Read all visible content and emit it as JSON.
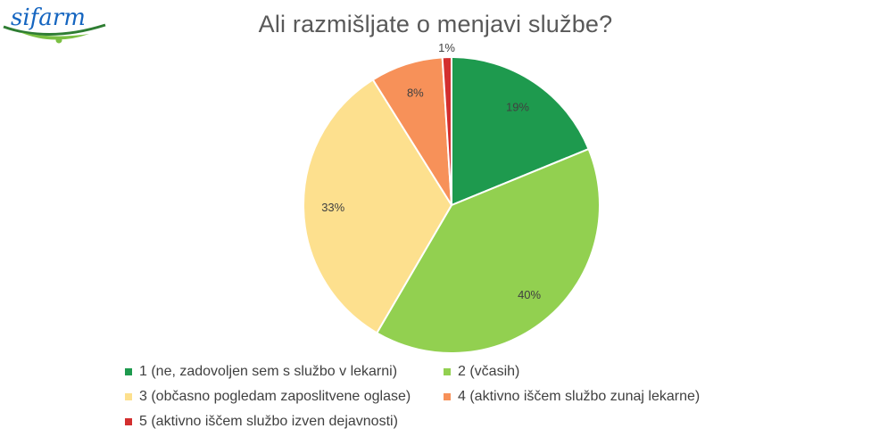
{
  "logo": {
    "text": "sifarm"
  },
  "chart_data": {
    "type": "pie",
    "title": "Ali razmišljate o menjavi službe?",
    "categories": [
      "1 (ne, zadovoljen sem s službo v lekarni)",
      "2 (včasih)",
      "3 (občasno pogledam zaposlitvene oglase)",
      "4 (aktivno iščem službo zunaj lekarne)",
      "5 (aktivno iščem službo izven dejavnosti)"
    ],
    "values": [
      19,
      40,
      33,
      8,
      1
    ],
    "labels": [
      "19%",
      "40%",
      "33%",
      "8%",
      "1%"
    ],
    "colors": [
      "#1e9a4e",
      "#92d050",
      "#fde08e",
      "#f79159",
      "#d32f2f"
    ],
    "legend_position": "bottom"
  }
}
